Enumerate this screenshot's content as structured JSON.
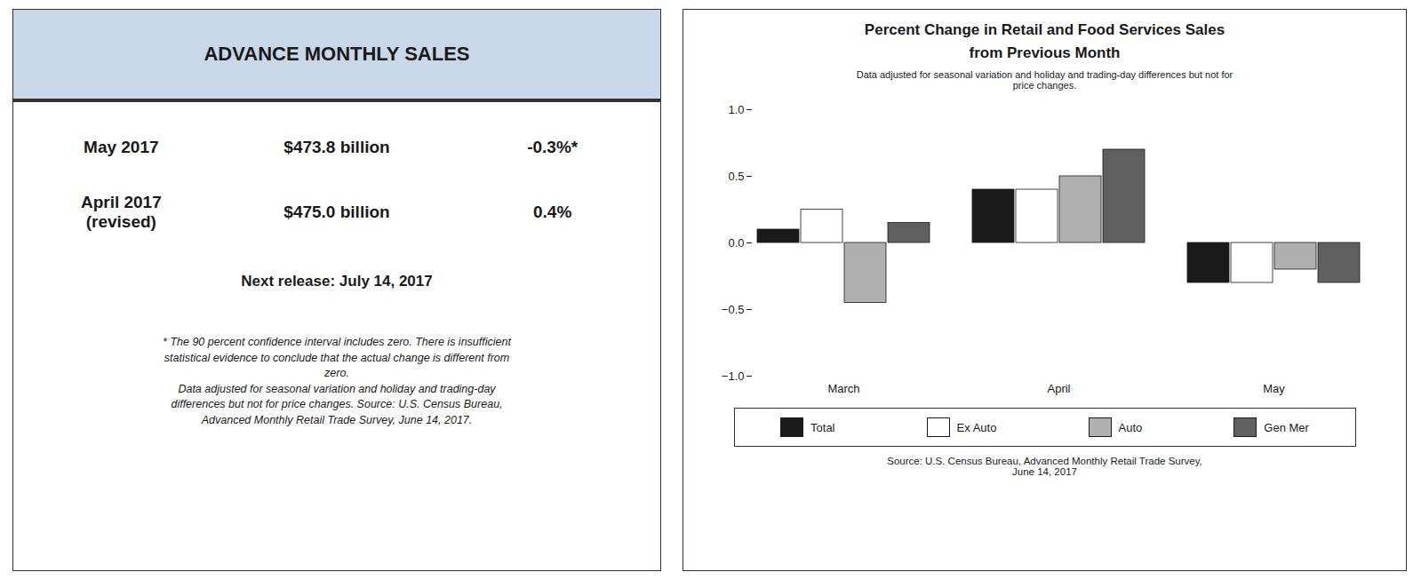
{
  "chart_data": {
    "type": "bar",
    "title": "Percent Change in Retail and Food Services Sales\nfrom Previous Month",
    "subtitle": "Data adjusted for seasonal variation and holiday and trading-day differences but not for\nprice changes.",
    "annotations": [
      "ADVANCE MONTHLY SALES",
      "May 2017",
      "$473.8 billion",
      "-0.3%*",
      "April 2017\n(revised)",
      "$475.0 billion",
      "0.4%",
      "Next release: July 14, 2017",
      "* The 90 percent confidence interval includes zero. There is insufficient\nstatistical evidence to conclude that the actual change is different from\nzero.\nData adjusted for seasonal variation and holiday and trading-day\ndifferences but not for price changes. Source: U.S. Census Bureau,\nAdvanced Monthly Retail Trade Survey, June 14, 2017.",
      "Source: U.S. Census Bureau, Advanced Monthly Retail Trade Survey,\nJune 14, 2017"
    ],
    "categories": [
      "March",
      "April",
      "May"
    ],
    "series": [
      {
        "name": "Total",
        "color": "#1a1a1a",
        "values": [
          0.1,
          0.4,
          -0.3
        ]
      },
      {
        "name": "Ex Auto",
        "color": "#ffffff",
        "values": [
          0.25,
          0.4,
          -0.3
        ]
      },
      {
        "name": "Auto",
        "color": "#b0b0b0",
        "values": [
          -0.45,
          0.5,
          -0.2
        ]
      },
      {
        "name": "Gen Mer",
        "color": "#606060",
        "values": [
          0.15,
          0.7,
          -0.3
        ]
      }
    ],
    "ylim": [
      -1,
      1
    ],
    "yticks": [
      -1,
      -0.5,
      0,
      0.5,
      1
    ],
    "grid": false,
    "legend": "bottom"
  }
}
